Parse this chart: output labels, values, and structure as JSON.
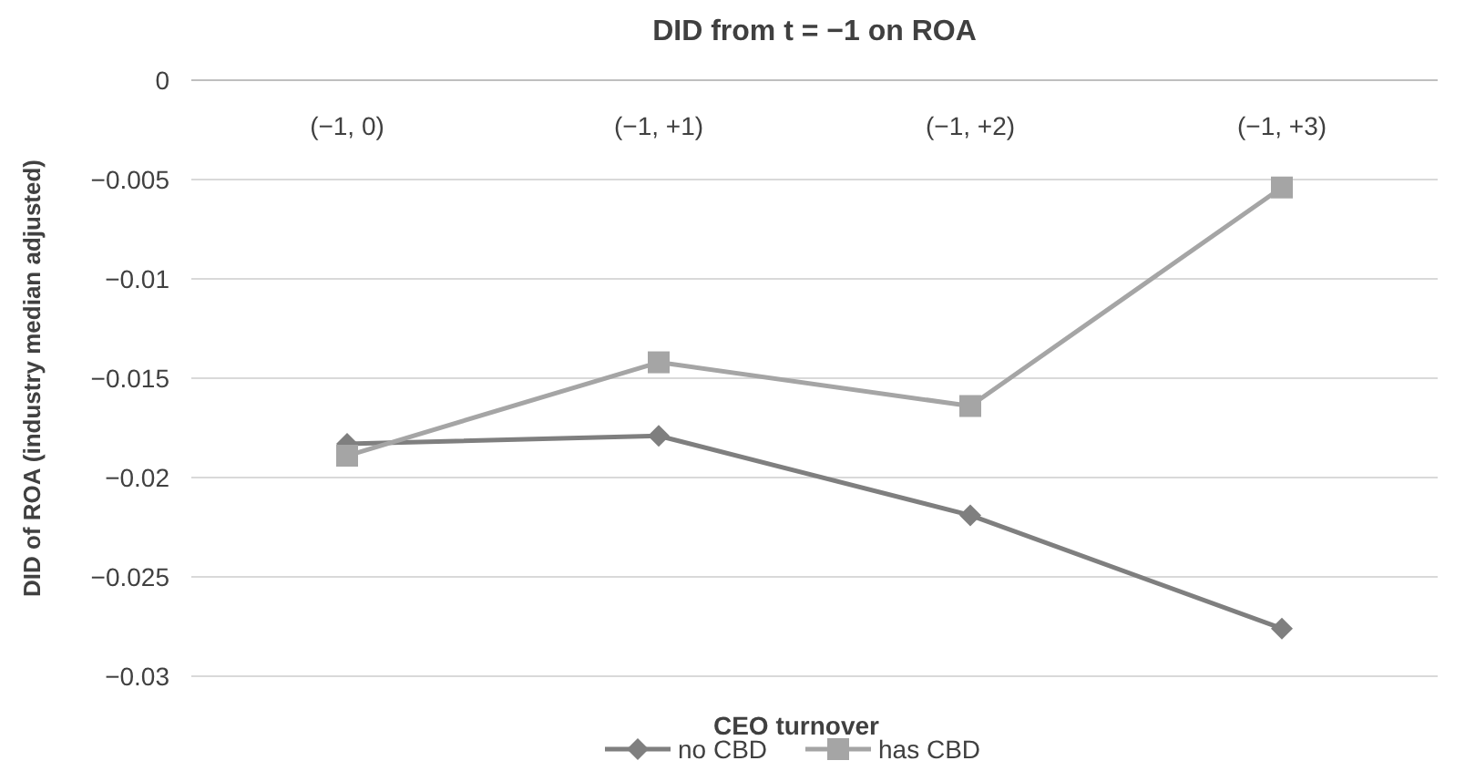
{
  "chart_data": {
    "type": "line",
    "title": "DID from t = −1  on ROA",
    "xlabel": "CEO turnover",
    "ylabel": "DID of ROA (industry median adjusted)",
    "categories": [
      "(−1, 0)",
      "(−1, +1)",
      "(−1, +2)",
      "(−1, +3)"
    ],
    "series": [
      {
        "name": "no CBD",
        "color": "#7f7f7f",
        "marker": "diamond",
        "values": [
          -0.0183,
          -0.0179,
          -0.0219,
          -0.0276
        ]
      },
      {
        "name": "has CBD",
        "color": "#a5a5a5",
        "marker": "square",
        "values": [
          -0.0189,
          -0.0142,
          -0.0164,
          -0.0054
        ]
      }
    ],
    "ylim": [
      -0.03,
      0
    ],
    "yticks": [
      0,
      -0.005,
      -0.01,
      -0.015,
      -0.02,
      -0.025,
      -0.03
    ],
    "grid": "y",
    "legend": "bottom"
  }
}
